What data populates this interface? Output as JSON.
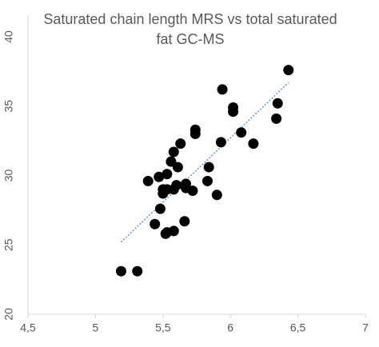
{
  "chart_data": {
    "type": "scatter",
    "title": "Saturated chain length MRS vs total saturated fat GC-MS",
    "x": [
      5.19,
      5.31,
      5.39,
      5.44,
      5.47,
      5.48,
      5.5,
      5.5,
      5.52,
      5.53,
      5.53,
      5.53,
      5.56,
      5.58,
      5.58,
      5.58,
      5.6,
      5.61,
      5.63,
      5.66,
      5.67,
      5.67,
      5.72,
      5.74,
      5.74,
      5.83,
      5.84,
      5.9,
      5.94,
      5.93,
      6.02,
      6.02,
      6.08,
      6.17,
      6.34,
      6.35,
      6.43
    ],
    "series": [
      {
        "color": "#000000",
        "values": [
          23.1,
          23.1,
          29.6,
          26.5,
          29.9,
          27.6,
          29.0,
          28.7,
          25.8,
          25.9,
          30.1,
          29.0,
          31.0,
          31.7,
          26.0,
          29.0,
          29.3,
          30.6,
          32.3,
          26.7,
          29.1,
          29.4,
          28.9,
          33.3,
          33.0,
          29.6,
          30.6,
          28.6,
          36.2,
          32.4,
          34.9,
          34.6,
          33.1,
          32.3,
          34.1,
          35.2,
          37.6
        ]
      }
    ],
    "trendline": {
      "color": "#5b9bd5",
      "x": [
        5.19,
        6.43
      ],
      "y": [
        25.2,
        36.7
      ]
    },
    "xlim": [
      4.5,
      7
    ],
    "ylim": [
      20,
      40
    ],
    "xticks": [
      {
        "value": 4.5,
        "label": "4,5"
      },
      5,
      {
        "value": 5.5,
        "label": "5,5"
      },
      6,
      {
        "value": 6.5,
        "label": "6,5"
      },
      7
    ],
    "yticks": [
      20,
      25,
      30,
      35,
      40
    ]
  }
}
